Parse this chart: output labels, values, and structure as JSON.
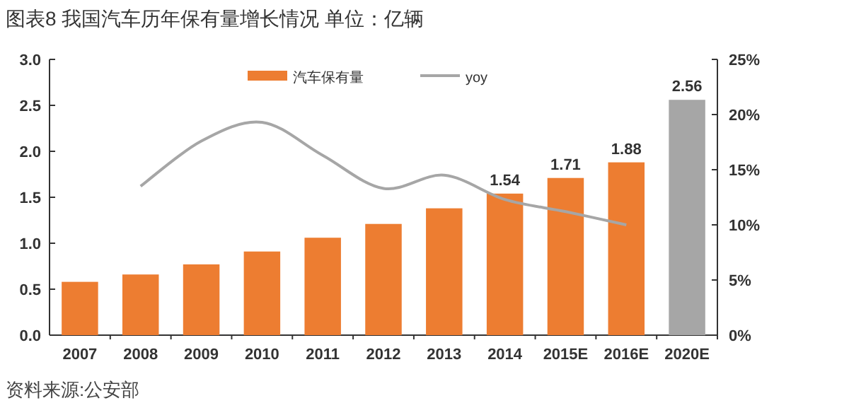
{
  "chart_data": {
    "type": "bar",
    "title": "图表8 我国汽车历年保有量增长情况 单位：亿辆",
    "categories": [
      "2007",
      "2008",
      "2009",
      "2010",
      "2011",
      "2012",
      "2013",
      "2014",
      "2015E",
      "2016E",
      "2020E"
    ],
    "series": [
      {
        "name": "汽车保有量",
        "color": "#ed7d31",
        "colors": [
          "#ed7d31",
          "#ed7d31",
          "#ed7d31",
          "#ed7d31",
          "#ed7d31",
          "#ed7d31",
          "#ed7d31",
          "#ed7d31",
          "#ed7d31",
          "#ed7d31",
          "#a6a6a6"
        ],
        "values": [
          0.58,
          0.66,
          0.77,
          0.91,
          1.06,
          1.21,
          1.38,
          1.54,
          1.71,
          1.88,
          2.56
        ],
        "value_labels": [
          null,
          null,
          null,
          null,
          null,
          null,
          null,
          "1.54",
          "1.71",
          "1.88",
          "2.56"
        ]
      },
      {
        "name": "yoy",
        "type": "line",
        "axis": "y2",
        "color": "#a6a6a6",
        "values": [
          null,
          13.5,
          17.6,
          19.3,
          16.3,
          13.3,
          14.5,
          12.3,
          11.2,
          10.0,
          null
        ]
      }
    ],
    "ylim": [
      0,
      3
    ],
    "yticks": [
      {
        "value": 0,
        "label": "0.0"
      },
      {
        "value": 0.5,
        "label": "0.5"
      },
      {
        "value": 1,
        "label": "1.0"
      },
      {
        "value": 1.5,
        "label": "1.5"
      },
      {
        "value": 2,
        "label": "2.0"
      },
      {
        "value": 2.5,
        "label": "2.5"
      },
      {
        "value": 3,
        "label": "3.0"
      }
    ],
    "y2lim": [
      0,
      25
    ],
    "y2ticks": [
      {
        "value": 0,
        "label": "0%"
      },
      {
        "value": 5,
        "label": "5%"
      },
      {
        "value": 10,
        "label": "10%"
      },
      {
        "value": 15,
        "label": "15%"
      },
      {
        "value": 20,
        "label": "20%"
      },
      {
        "value": 25,
        "label": "25%"
      }
    ],
    "legend": "top",
    "grid": false,
    "annotations": [
      "资料来源:公安部"
    ]
  }
}
